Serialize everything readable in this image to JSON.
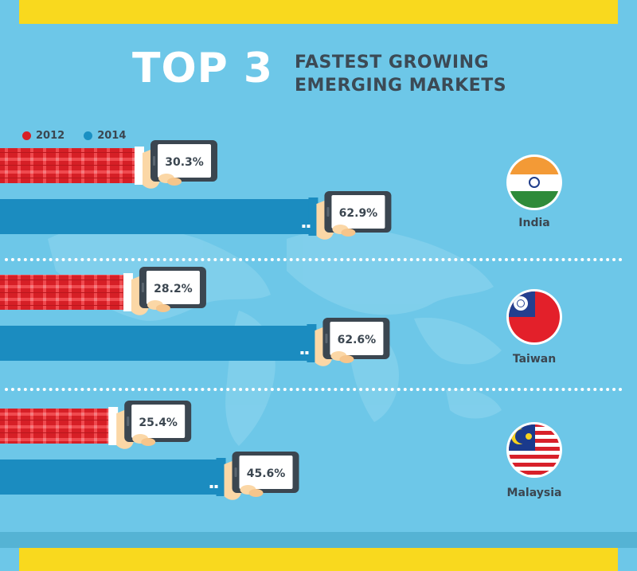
{
  "title": {
    "big": "TOP 3",
    "line1": "FASTEST GROWING",
    "line2": "EMERGING MARKETS"
  },
  "legend": [
    {
      "label": "2012",
      "color": "#d81f26"
    },
    {
      "label": "2014",
      "color": "#1a90c3"
    }
  ],
  "countries": [
    "India",
    "Taiwan",
    "Malaysia"
  ],
  "chart_data": {
    "type": "bar",
    "title": "TOP 3 FASTEST GROWING EMERGING MARKETS",
    "categories": [
      "India",
      "Taiwan",
      "Malaysia"
    ],
    "series": [
      {
        "name": "2012",
        "values": [
          30.3,
          28.2,
          25.4
        ],
        "labels": [
          "30.3%",
          "28.2%",
          "25.4%"
        ]
      },
      {
        "name": "2014",
        "values": [
          62.9,
          62.6,
          45.6
        ],
        "labels": [
          "62.9%",
          "62.6%",
          "45.6%"
        ]
      }
    ],
    "unit": "%",
    "ylim": [
      0,
      70
    ],
    "orientation": "horizontal",
    "legend": "top-left"
  }
}
